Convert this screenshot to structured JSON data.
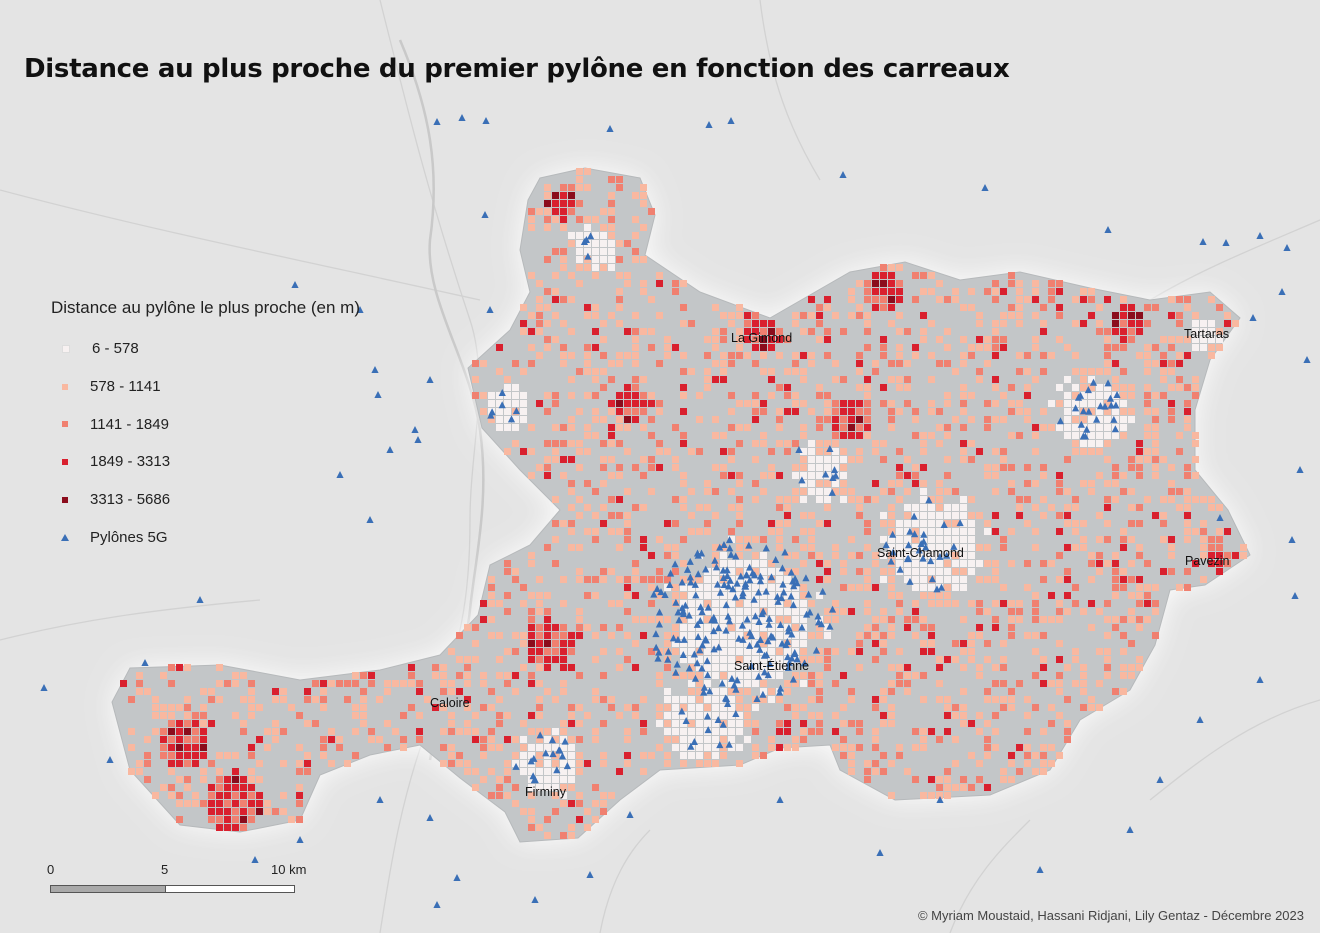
{
  "title": "Distance au plus proche du premier pylône en fonction des carreaux",
  "legend": {
    "title": "Distance au pylône le plus proche (en m)",
    "items": [
      {
        "label": "6 - 578",
        "color": "#f7f1f1"
      },
      {
        "label": "578 - 1141",
        "color": "#f9b8a0"
      },
      {
        "label": "1141 - 1849",
        "color": "#f08070"
      },
      {
        "label": "1849 - 3313",
        "color": "#d9202e"
      },
      {
        "label": "3313 - 5686",
        "color": "#8b0c1c"
      }
    ],
    "pylon_label": "Pylônes 5G",
    "pylon_color": "#3a6fb6"
  },
  "places": [
    {
      "name": "La Gimond"
    },
    {
      "name": "Tartaras"
    },
    {
      "name": "Saint-Chamond"
    },
    {
      "name": "Pavezin"
    },
    {
      "name": "Saint-Étienne"
    },
    {
      "name": "Caloire"
    },
    {
      "name": "Firminy"
    }
  ],
  "scalebar": {
    "labels": [
      "0",
      "5",
      "10 km"
    ]
  },
  "credit": "© Myriam Moustaid, Hassani Ridjani, Lily Gentaz - Décembre 2023"
}
